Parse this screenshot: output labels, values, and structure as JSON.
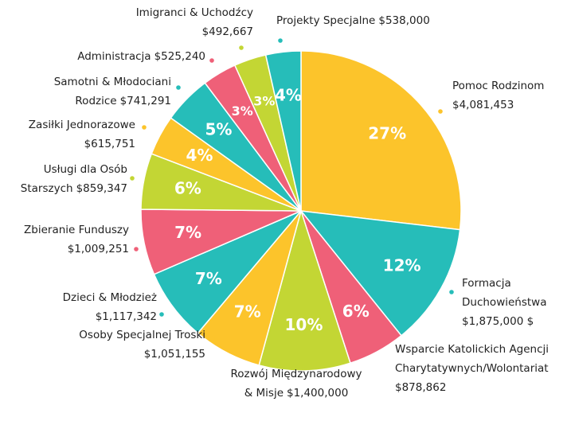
{
  "chart_data": {
    "type": "pie",
    "categories": [
      "Pomoc Rodzinom",
      "Formacja Duchowieństwa",
      "Wsparcie Katolickich Agencji Charytatywnych/Wolontariat",
      "Rozwój Międzynarodowy & Misje",
      "Osoby Specjalnej Troski",
      "Dzieci & Młodzież",
      "Zbieranie Funduszy",
      "Usługi dla Osób Starszych",
      "Zasiłki Jednorazowe",
      "Samotni & Młodociani Rodzice",
      "Administracja",
      "Imigranci & Uchodźcy",
      "Projekty Specjalne"
    ],
    "values": [
      4081453,
      1875000,
      878862,
      1400000,
      1051155,
      1117342,
      1009251,
      859347,
      615751,
      741291,
      525240,
      492667,
      538000
    ],
    "value_labels": [
      "$4,081,453",
      "$1,875,000 $",
      "$878,862",
      "$1,400,000",
      "$1,051,155",
      "$1,117,342",
      "$1,009,251",
      "$859,347",
      "$615,751",
      "$741,291",
      "$525,240",
      "$492,667",
      "$538,000"
    ],
    "percentages": [
      {
        "value": 27,
        "label": "27%"
      },
      {
        "value": 12,
        "label": "12%"
      },
      {
        "value": 6,
        "label": "6%"
      },
      {
        "value": 10,
        "label": "10%"
      },
      {
        "value": 7,
        "label": "7%"
      },
      {
        "value": 7,
        "label": "7%"
      },
      {
        "value": 7,
        "label": "7%"
      },
      {
        "value": 6,
        "label": "6%"
      },
      {
        "value": 4,
        "label": "4%"
      },
      {
        "value": 5,
        "label": "5%"
      },
      {
        "value": 3,
        "label": "3%"
      },
      {
        "value": 3,
        "label": "3%"
      },
      {
        "value": 4,
        "label": "4%"
      }
    ],
    "colors": [
      "#fcc42b",
      "#26bdb9",
      "#ef6078",
      "#c3d634",
      "#fcc42b",
      "#26bdb9",
      "#ef6078",
      "#c3d634",
      "#fcc42b",
      "#26bdb9",
      "#ef6078",
      "#c3d634",
      "#26bdb9"
    ]
  }
}
